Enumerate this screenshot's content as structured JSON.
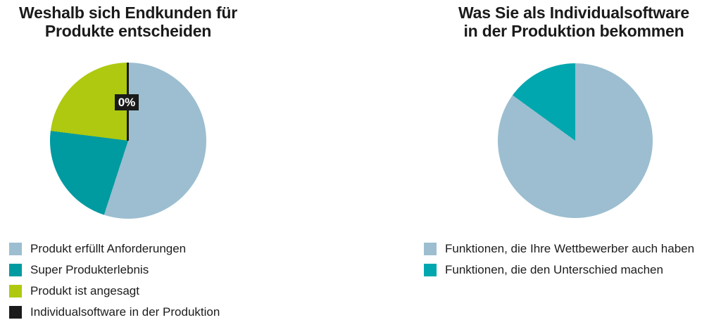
{
  "page": {
    "background": "#ffffff",
    "text_color": "#1a1a1a"
  },
  "chart_data": [
    {
      "type": "pie",
      "title": "Weshalb sich Endkunden für Produkte entscheiden",
      "title_lines": [
        "Weshalb sich Endkunden für",
        "Produkte entscheiden"
      ],
      "start_angle_deg": 0,
      "direction": "clockwise",
      "legend_position": "bottom-left",
      "slices": [
        {
          "label": "Produkt erfüllt Anforderungen",
          "value": 55,
          "color": "#9cbed0"
        },
        {
          "label": "Super Produkterlebnis",
          "value": 22,
          "color": "#009aa1"
        },
        {
          "label": "Produkt ist angesagt",
          "value": 23,
          "color": "#aec90f"
        },
        {
          "label": "Individualsoftware in der Produktion",
          "value": 0,
          "color": "#1a1a1a"
        }
      ],
      "annotation": "0%",
      "annotation_bg": "#1a1a1a",
      "annotation_text_color": "#ffffff"
    },
    {
      "type": "pie",
      "title": "Was Sie als Individualsoftware in der Produktion bekommen",
      "title_lines": [
        "Was Sie als Individualsoftware",
        "in der Produktion bekommen"
      ],
      "start_angle_deg": 0,
      "direction": "clockwise",
      "legend_position": "bottom-left",
      "slices": [
        {
          "label": "Funktionen, die Ihre Wettbewerber auch haben",
          "value": 85,
          "color": "#9cbed0"
        },
        {
          "label": "Funktionen, die den Unterschied machen",
          "value": 15,
          "color": "#00a7ae"
        }
      ]
    }
  ]
}
